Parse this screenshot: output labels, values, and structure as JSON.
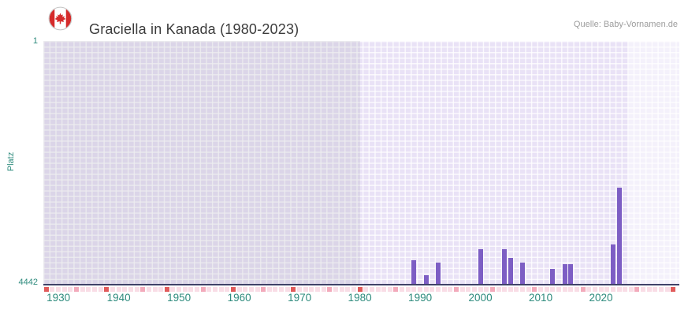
{
  "header": {
    "title": "Graciella in Kanada (1980-2023)",
    "source": "Quelle: Baby-Vornamen.de",
    "flag_icon": "canada-flag"
  },
  "chart_data": {
    "type": "bar",
    "title": "Graciella in Kanada (1980-2023)",
    "xlabel": "",
    "ylabel": "Platz",
    "y_axis": {
      "top_label": "1",
      "bottom_label": "4442",
      "min": 1,
      "max": 4442,
      "inverted": true,
      "note": "rank 1 at top, bars rise from rank 4442 baseline"
    },
    "x_axis": {
      "tick_labels": [
        "1930",
        "1940",
        "1950",
        "1960",
        "1970",
        "1980",
        "1990",
        "2000",
        "2010",
        "2020"
      ],
      "xlim": [
        1927.5,
        2033
      ]
    },
    "highlight_range": [
      1980,
      2024.5
    ],
    "grid": true,
    "legend": "none",
    "points": [
      {
        "year": 1989,
        "rank": 3990
      },
      {
        "year": 1991,
        "rank": 4270
      },
      {
        "year": 1993,
        "rank": 4040
      },
      {
        "year": 2000,
        "rank": 3800
      },
      {
        "year": 2004,
        "rank": 3790
      },
      {
        "year": 2005,
        "rank": 3960
      },
      {
        "year": 2007,
        "rank": 4040
      },
      {
        "year": 2012,
        "rank": 4150
      },
      {
        "year": 2014,
        "rank": 4070
      },
      {
        "year": 2015,
        "rank": 4070
      },
      {
        "year": 2022,
        "rank": 3710
      },
      {
        "year": 2023,
        "rank": 2680
      }
    ],
    "timeline_markers": {
      "start": 1928,
      "end": 2032,
      "red_years": [
        1928,
        1938,
        1948,
        1959,
        1969,
        1980,
        2032
      ],
      "medium_years": [
        1933,
        1944,
        1954,
        1964,
        1975,
        1986,
        1996,
        2002,
        2009,
        2017,
        2026
      ],
      "meaning": "years without ranking data"
    },
    "colors": {
      "bar": "#7d5ec4",
      "axis": "#3f4268",
      "tick": "#2e8b7d",
      "plot_bg": "#e9e2f6",
      "marker_red": "#e15b5b",
      "marker_medium": "#f3aabb",
      "marker_light": "#f9dde6",
      "title": "#3c3c3c",
      "source": "#9c9c9c",
      "flag_red": "#d52b2b"
    }
  }
}
